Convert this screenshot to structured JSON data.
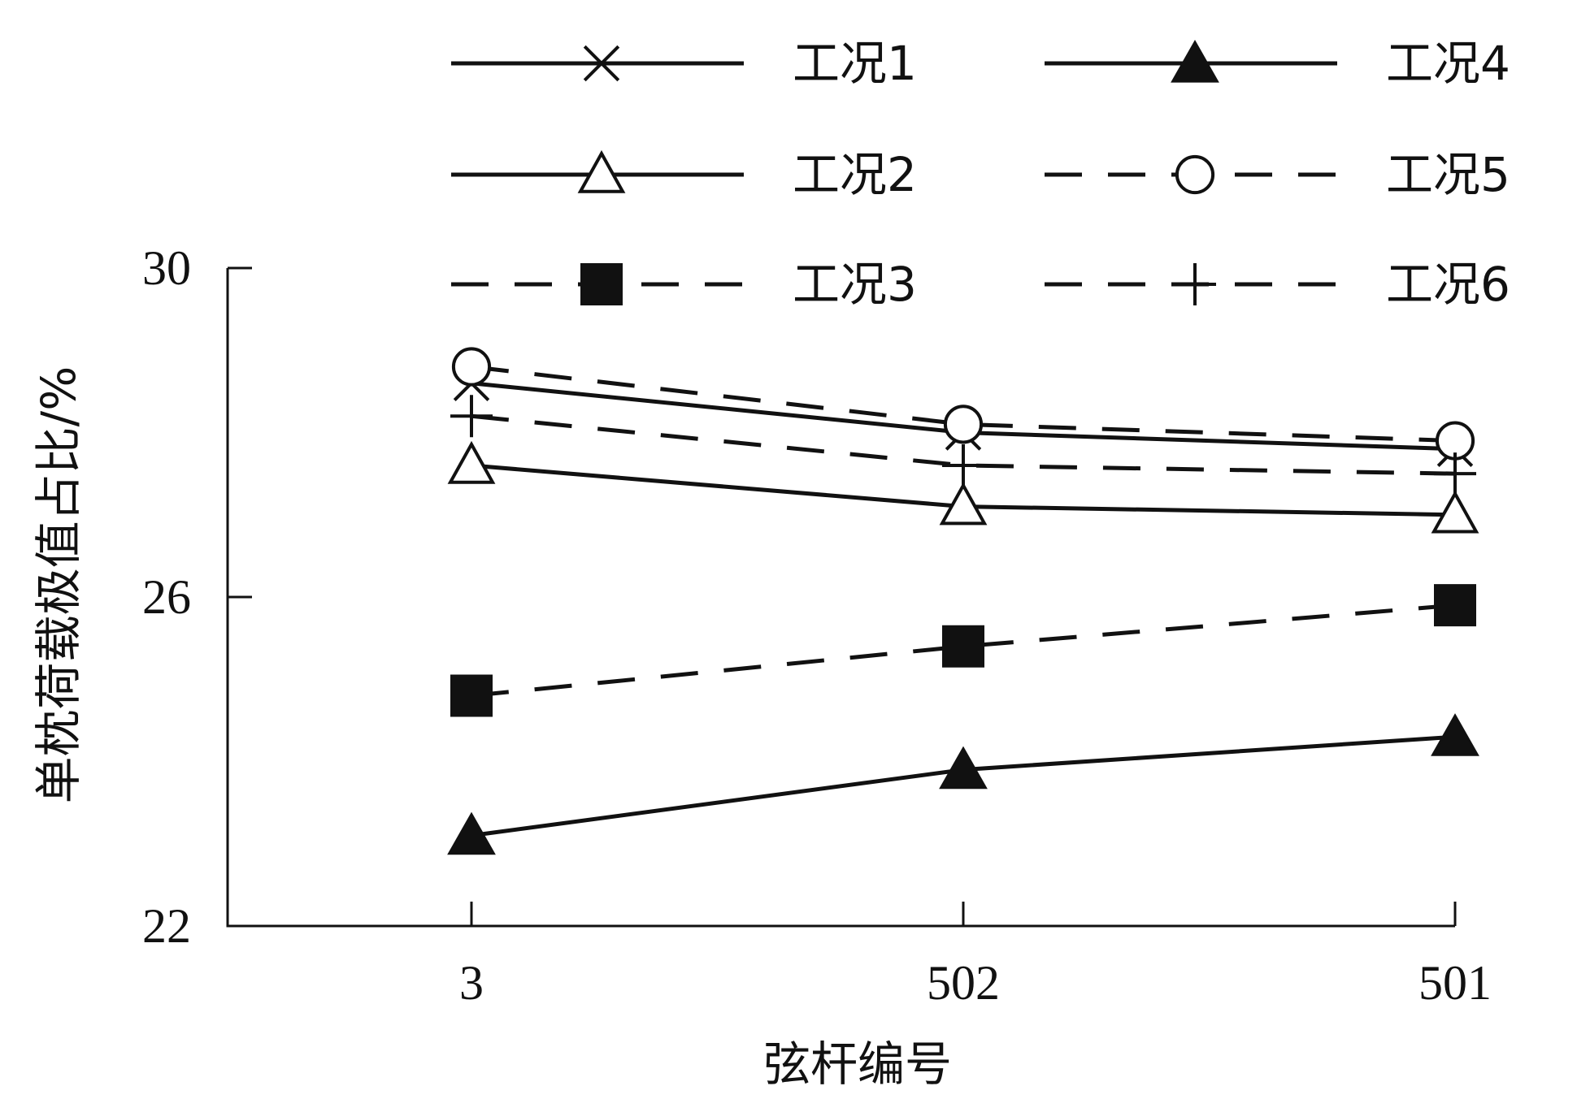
{
  "chart_data": {
    "type": "line",
    "title": "",
    "xlabel": "弦杆编号",
    "ylabel": "单枕荷载极值占比/%",
    "categories": [
      "3",
      "502",
      "501"
    ],
    "ylim": [
      22,
      30
    ],
    "yticks": [
      22,
      26,
      30
    ],
    "grid": false,
    "legend_position": "top",
    "series": [
      {
        "name": "工况1",
        "values": [
          28.6,
          28.0,
          27.8
        ],
        "marker": "x",
        "dashed": false
      },
      {
        "name": "工况2",
        "values": [
          27.6,
          27.1,
          27.0
        ],
        "marker": "triangle-open",
        "dashed": false
      },
      {
        "name": "工况3",
        "values": [
          24.8,
          25.4,
          25.9
        ],
        "marker": "square-filled",
        "dashed": true
      },
      {
        "name": "工况4",
        "values": [
          23.1,
          23.9,
          24.3
        ],
        "marker": "triangle-filled",
        "dashed": false
      },
      {
        "name": "工况5",
        "values": [
          28.8,
          28.1,
          27.9
        ],
        "marker": "circle-open",
        "dashed": true
      },
      {
        "name": "工况6",
        "values": [
          28.2,
          27.6,
          27.5
        ],
        "marker": "plus",
        "dashed": true
      }
    ]
  }
}
